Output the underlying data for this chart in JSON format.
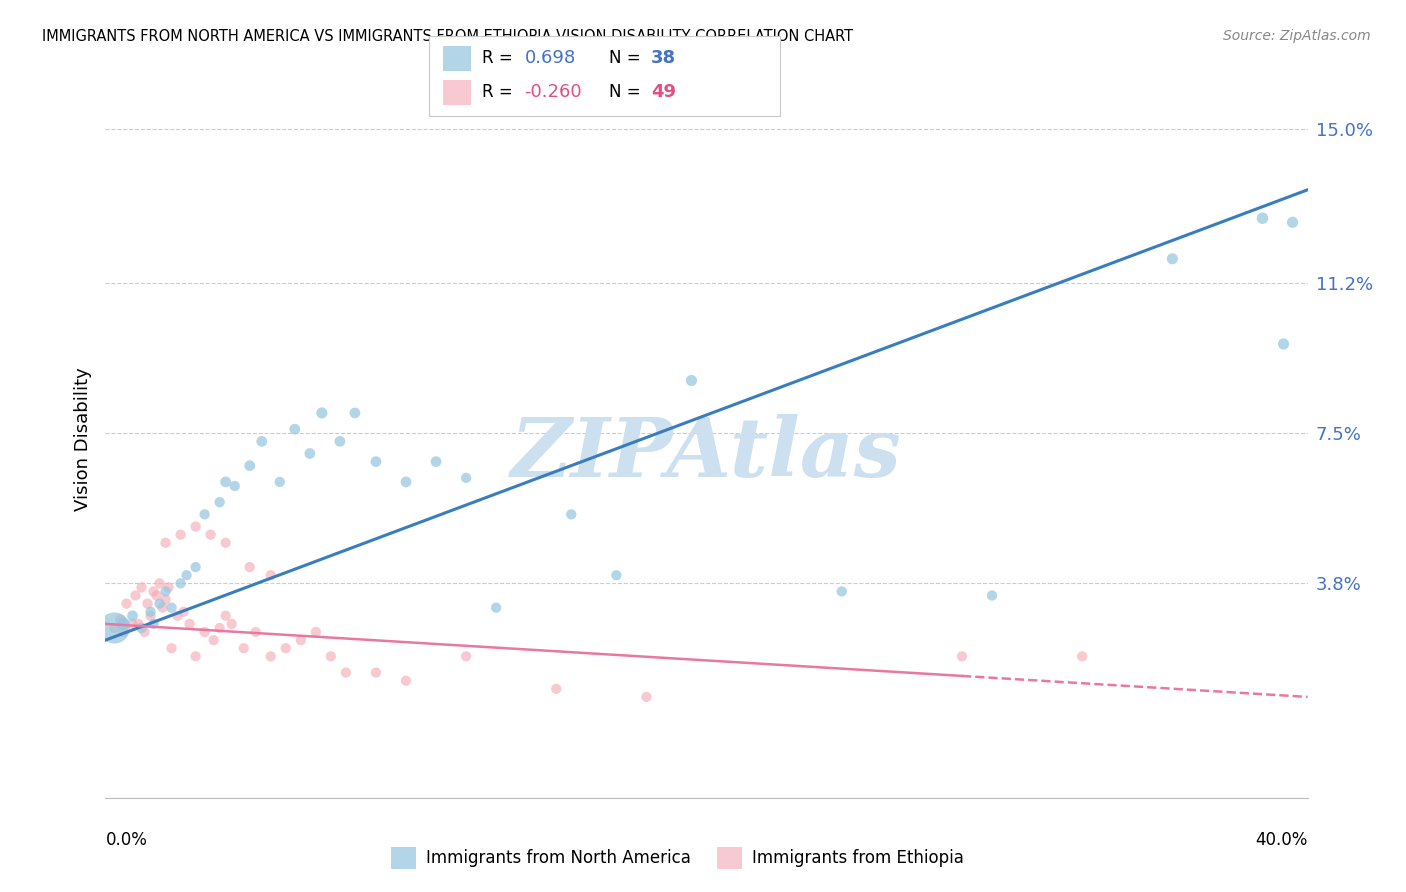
{
  "title": "IMMIGRANTS FROM NORTH AMERICA VS IMMIGRANTS FROM ETHIOPIA VISION DISABILITY CORRELATION CHART",
  "source": "Source: ZipAtlas.com",
  "ylabel": "Vision Disability",
  "yticks": [
    0.0,
    0.038,
    0.075,
    0.112,
    0.15
  ],
  "ytick_labels": [
    "",
    "3.8%",
    "7.5%",
    "11.2%",
    "15.0%"
  ],
  "xlim": [
    0.0,
    0.4
  ],
  "ylim": [
    -0.015,
    0.162
  ],
  "blue_R": "0.698",
  "blue_N": "38",
  "pink_R": "-0.260",
  "pink_N": "49",
  "blue_color": "#92c5de",
  "pink_color": "#f4a6b2",
  "blue_line_color": "#3a7dbf",
  "pink_line_color": "#e878a0",
  "watermark_text": "ZIPAtlas",
  "watermark_color": "#cce0f0",
  "blue_line_x0": 0.0,
  "blue_line_y0": 0.024,
  "blue_line_x1": 0.4,
  "blue_line_y1": 0.135,
  "pink_line_x0": 0.0,
  "pink_line_y0": 0.028,
  "pink_line_x1": 0.4,
  "pink_line_y1": 0.01,
  "blue_scatter_x": [
    0.003,
    0.006,
    0.009,
    0.012,
    0.015,
    0.016,
    0.018,
    0.02,
    0.022,
    0.025,
    0.027,
    0.03,
    0.033,
    0.038,
    0.04,
    0.043,
    0.048,
    0.052,
    0.058,
    0.063,
    0.068,
    0.072,
    0.078,
    0.083,
    0.09,
    0.1,
    0.11,
    0.12,
    0.13,
    0.155,
    0.17,
    0.195,
    0.245,
    0.295,
    0.355,
    0.385,
    0.392,
    0.395
  ],
  "blue_scatter_y": [
    0.027,
    0.028,
    0.03,
    0.027,
    0.031,
    0.028,
    0.033,
    0.036,
    0.032,
    0.038,
    0.04,
    0.042,
    0.055,
    0.058,
    0.063,
    0.062,
    0.067,
    0.073,
    0.063,
    0.076,
    0.07,
    0.08,
    0.073,
    0.08,
    0.068,
    0.063,
    0.068,
    0.064,
    0.032,
    0.055,
    0.04,
    0.088,
    0.036,
    0.035,
    0.118,
    0.128,
    0.097,
    0.127
  ],
  "blue_scatter_size": [
    500,
    80,
    60,
    55,
    55,
    55,
    55,
    55,
    55,
    55,
    55,
    55,
    55,
    55,
    60,
    55,
    60,
    60,
    55,
    60,
    60,
    65,
    60,
    60,
    60,
    60,
    60,
    55,
    55,
    55,
    55,
    65,
    55,
    55,
    65,
    70,
    65,
    65
  ],
  "pink_scatter_x": [
    0.003,
    0.005,
    0.006,
    0.007,
    0.009,
    0.01,
    0.011,
    0.012,
    0.013,
    0.014,
    0.015,
    0.016,
    0.017,
    0.018,
    0.019,
    0.02,
    0.021,
    0.022,
    0.024,
    0.026,
    0.028,
    0.03,
    0.033,
    0.036,
    0.038,
    0.04,
    0.042,
    0.046,
    0.05,
    0.055,
    0.06,
    0.065,
    0.07,
    0.075,
    0.08,
    0.09,
    0.1,
    0.12,
    0.15,
    0.18,
    0.02,
    0.025,
    0.03,
    0.035,
    0.04,
    0.048,
    0.055,
    0.285,
    0.325
  ],
  "pink_scatter_y": [
    0.027,
    0.029,
    0.026,
    0.033,
    0.028,
    0.035,
    0.028,
    0.037,
    0.026,
    0.033,
    0.03,
    0.036,
    0.035,
    0.038,
    0.032,
    0.034,
    0.037,
    0.022,
    0.03,
    0.031,
    0.028,
    0.02,
    0.026,
    0.024,
    0.027,
    0.03,
    0.028,
    0.022,
    0.026,
    0.02,
    0.022,
    0.024,
    0.026,
    0.02,
    0.016,
    0.016,
    0.014,
    0.02,
    0.012,
    0.01,
    0.048,
    0.05,
    0.052,
    0.05,
    0.048,
    0.042,
    0.04,
    0.02,
    0.02
  ],
  "pink_scatter_size": [
    55,
    60,
    55,
    55,
    55,
    55,
    55,
    55,
    55,
    55,
    55,
    55,
    55,
    55,
    55,
    55,
    55,
    55,
    55,
    55,
    55,
    55,
    55,
    55,
    55,
    55,
    55,
    55,
    55,
    55,
    55,
    55,
    55,
    55,
    55,
    55,
    55,
    55,
    55,
    55,
    55,
    55,
    55,
    55,
    55,
    55,
    55,
    55,
    55
  ],
  "legend_blue_label": "Immigrants from North America",
  "legend_pink_label": "Immigrants from Ethiopia"
}
